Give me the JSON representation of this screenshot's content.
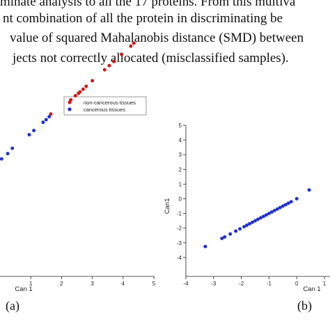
{
  "text": {
    "line1": "minate analysis to all the 17 proteins. From this multiva",
    "line2": "nt combination of all the protein in discriminating be",
    "line3": "value of squared Mahalanobis distance (SMD) between",
    "line4": "jects not correctly allocated (misclassified samples)."
  },
  "colors": {
    "red": "#cc1a1a",
    "blue": "#2233cc"
  },
  "chart_data": [
    {
      "type": "scatter",
      "panel_label": "(a)",
      "xlabel": "Can 1",
      "ylabel": "",
      "xlim": [
        -0.1,
        5
      ],
      "ylim": [
        -3.1,
        5.2
      ],
      "xticks": [
        "1",
        "2",
        "3",
        "4",
        "5"
      ],
      "legend": [
        "non-cancerous tissues",
        "cancerous tissues"
      ],
      "series": [
        {
          "name": "non-cancerous tissues",
          "color": "#cc1a1a",
          "x": [
            1.65,
            2.3,
            2.45,
            2.55,
            2.6,
            2.7,
            2.8,
            3.0,
            3.4,
            3.55,
            3.7,
            3.95,
            4.25,
            4.35
          ],
          "y": [
            2.4,
            2.88,
            3.02,
            3.1,
            3.15,
            3.24,
            3.34,
            3.53,
            3.9,
            4.04,
            4.18,
            4.42,
            4.7,
            4.8
          ]
        },
        {
          "name": "cancerous tissues",
          "color": "#2233cc",
          "x": [
            0.05,
            0.25,
            0.4,
            0.95,
            1.1,
            1.4,
            1.5,
            1.6
          ],
          "y": [
            0.88,
            1.06,
            1.24,
            1.7,
            1.84,
            2.12,
            2.21,
            2.31
          ]
        }
      ]
    },
    {
      "type": "scatter",
      "panel_label": "(b)",
      "xlabel": "Can 1",
      "ylabel": "Can1",
      "xlim": [
        -4,
        1
      ],
      "ylim": [
        -4,
        5
      ],
      "xticks": [
        "-4",
        "-3",
        "-2",
        "-1",
        "0",
        "1"
      ],
      "yticks": [
        "5",
        "4",
        "3",
        "2",
        "1",
        "0",
        "-1",
        "-2",
        "-3",
        "-4"
      ],
      "series": [
        {
          "name": "",
          "color": "#2233cc",
          "x": [
            -3.3,
            -2.7,
            -2.6,
            -2.4,
            -2.2,
            -2.05,
            -1.9,
            -1.8,
            -1.7,
            -1.6,
            -1.5,
            -1.4,
            -1.3,
            -1.2,
            -1.1,
            -1.0,
            -0.9,
            -0.8,
            -0.7,
            -0.6,
            -0.5,
            -0.4,
            -0.3,
            -0.2,
            0.0,
            0.45
          ],
          "y": [
            -3.25,
            -2.7,
            -2.6,
            -2.4,
            -2.2,
            -2.05,
            -1.9,
            -1.8,
            -1.7,
            -1.6,
            -1.5,
            -1.4,
            -1.3,
            -1.2,
            -1.1,
            -1.0,
            -0.9,
            -0.8,
            -0.7,
            -0.6,
            -0.5,
            -0.4,
            -0.3,
            -0.2,
            0.0,
            0.6
          ]
        }
      ]
    }
  ]
}
